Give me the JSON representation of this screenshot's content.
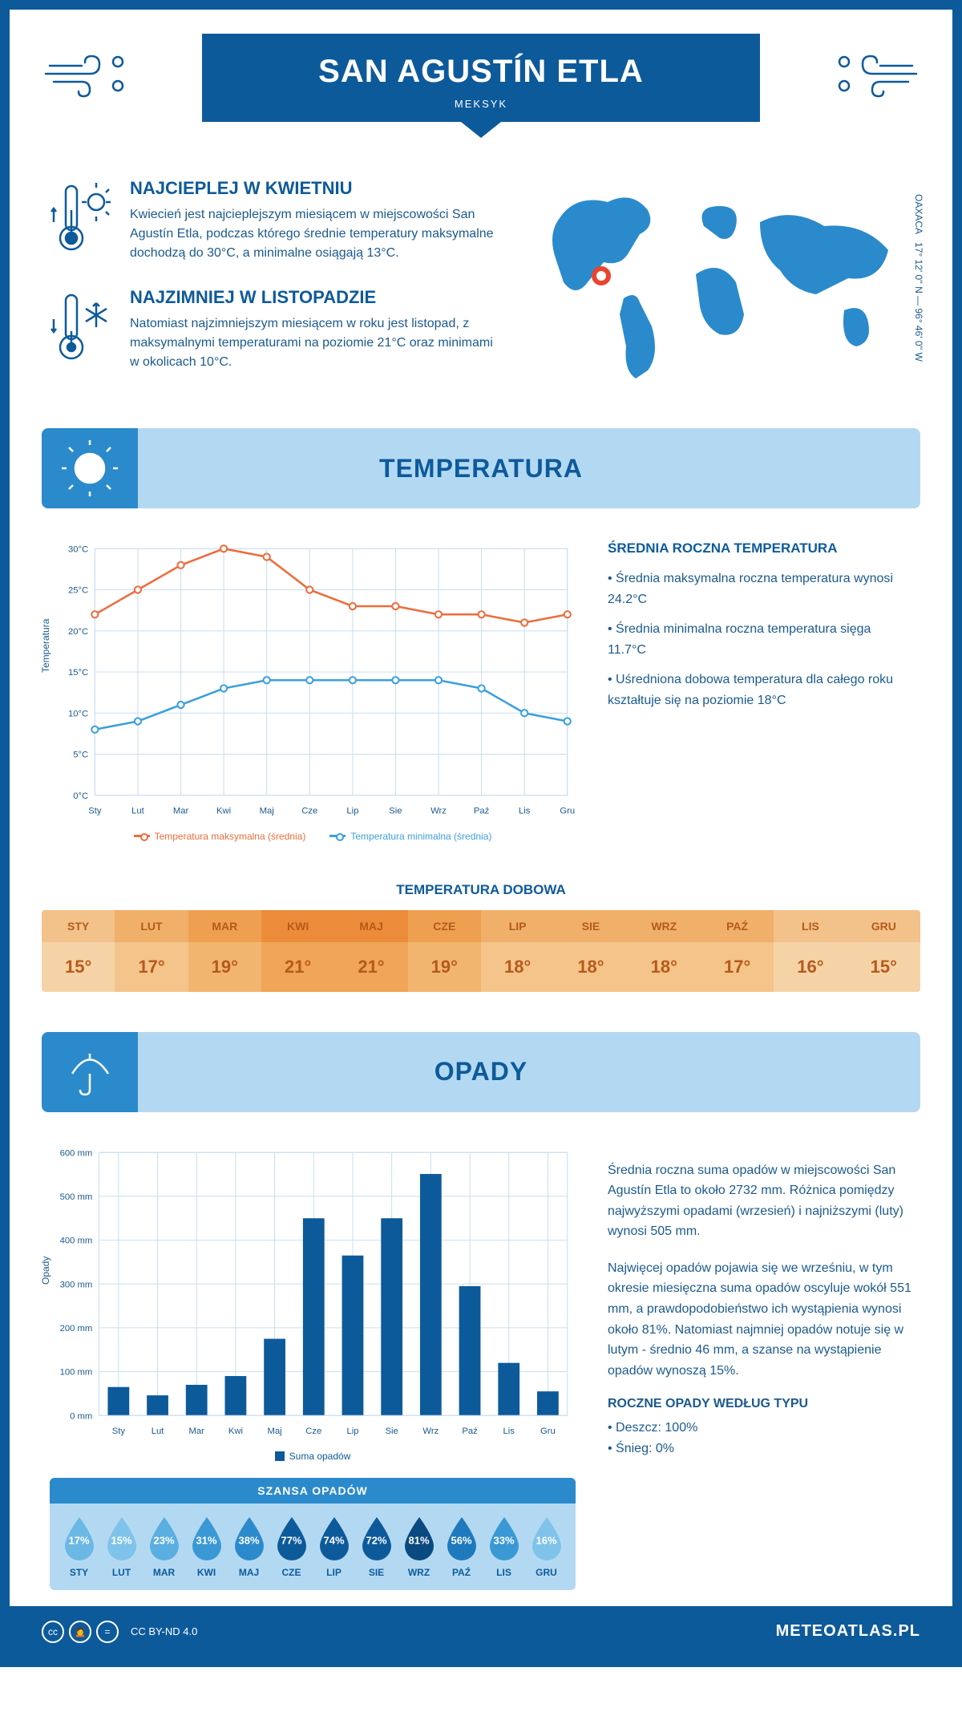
{
  "header": {
    "title": "SAN AGUSTÍN ETLA",
    "country": "MEKSYK"
  },
  "coords": {
    "lat": "17° 12' 0'' N",
    "lon": "96° 46' 0'' W",
    "region": "OAXACA"
  },
  "intro": {
    "warm": {
      "heading": "NAJCIEPLEJ W KWIETNIU",
      "text": "Kwiecień jest najcieplejszym miesiącem w miejscowości San Agustín Etla, podczas którego średnie temperatury maksymalne dochodzą do 30°C, a minimalne osiągają 13°C."
    },
    "cold": {
      "heading": "NAJZIMNIEJ W LISTOPADZIE",
      "text": "Natomiast najzimniejszym miesiącem w roku jest listopad, z maksymalnymi temperaturami na poziomie 21°C oraz minimami w okolicach 10°C."
    }
  },
  "sections": {
    "temperature": "TEMPERATURA",
    "precip": "OPADY"
  },
  "temp_chart": {
    "type": "line",
    "months": [
      "Sty",
      "Lut",
      "Mar",
      "Kwi",
      "Maj",
      "Cze",
      "Lip",
      "Sie",
      "Wrz",
      "Paź",
      "Lis",
      "Gru"
    ],
    "max": [
      22,
      25,
      28,
      30,
      29,
      25,
      23,
      23,
      22,
      22,
      21,
      22
    ],
    "min": [
      8,
      9,
      11,
      13,
      14,
      14,
      14,
      14,
      14,
      13,
      10,
      9
    ],
    "max_color": "#ec6d3e",
    "min_color": "#3ca0de",
    "grid_color": "#c8dff0",
    "ylim": [
      0,
      30
    ],
    "ytick_step": 5,
    "ylabel": "Temperatura",
    "legend_max": "Temperatura maksymalna (średnia)",
    "legend_min": "Temperatura minimalna (średnia)",
    "fontsize": 11
  },
  "temp_info": {
    "heading": "ŚREDNIA ROCZNA TEMPERATURA",
    "b1": "• Średnia maksymalna roczna temperatura wynosi 24.2°C",
    "b2": "• Średnia minimalna roczna temperatura sięga 11.7°C",
    "b3": "• Uśredniona dobowa temperatura dla całego roku kształtuje się na poziomie 18°C"
  },
  "daily": {
    "title": "TEMPERATURA DOBOWA",
    "months": [
      "STY",
      "LUT",
      "MAR",
      "KWI",
      "MAJ",
      "CZE",
      "LIP",
      "SIE",
      "WRZ",
      "PAŹ",
      "LIS",
      "GRU"
    ],
    "values": [
      "15°",
      "17°",
      "19°",
      "21°",
      "21°",
      "19°",
      "18°",
      "18°",
      "18°",
      "17°",
      "16°",
      "15°"
    ],
    "header_colors": [
      "#f2c28a",
      "#f0b06a",
      "#eea050",
      "#ec8c3a",
      "#ec8c3a",
      "#eea050",
      "#f0b06a",
      "#f0b06a",
      "#f0b06a",
      "#f0b06a",
      "#f2c28a",
      "#f2c28a"
    ],
    "value_colors": [
      "#f6d3a7",
      "#f4c48a",
      "#f2b570",
      "#f0a558",
      "#f0a558",
      "#f2b570",
      "#f4c48a",
      "#f4c48a",
      "#f4c48a",
      "#f4c48a",
      "#f6d3a7",
      "#f6d3a7"
    ],
    "text_color": "#b55a1a"
  },
  "precip_chart": {
    "type": "bar",
    "months": [
      "Sty",
      "Lut",
      "Mar",
      "Kwi",
      "Maj",
      "Cze",
      "Lip",
      "Sie",
      "Wrz",
      "Paź",
      "Lis",
      "Gru"
    ],
    "values": [
      65,
      46,
      70,
      90,
      175,
      450,
      365,
      450,
      551,
      295,
      120,
      55
    ],
    "bar_color": "#0d5a9b",
    "grid_color": "#c8dff0",
    "ylim": [
      0,
      600
    ],
    "ytick_step": 100,
    "ylabel": "Opady",
    "legend": "Suma opadów",
    "fontsize": 11
  },
  "precip_info": {
    "p1": "Średnia roczna suma opadów w miejscowości San Agustín Etla to około 2732 mm. Różnica pomiędzy najwyższymi opadami (wrzesień) i najniższymi (luty) wynosi 505 mm.",
    "p2": "Najwięcej opadów pojawia się we wrześniu, w tym okresie miesięczna suma opadów oscyluje wokół 551 mm, a prawdopodobieństwo ich wystąpienia wynosi około 81%. Natomiast najmniej opadów notuje się w lutym - średnio 46 mm, a szanse na wystąpienie opadów wynoszą 15%.",
    "type_heading": "ROCZNE OPADY WEDŁUG TYPU",
    "rain": "• Deszcz: 100%",
    "snow": "• Śnieg: 0%"
  },
  "chance": {
    "title": "SZANSA OPADÓW",
    "months": [
      "STY",
      "LUT",
      "MAR",
      "KWI",
      "MAJ",
      "CZE",
      "LIP",
      "SIE",
      "WRZ",
      "PAŹ",
      "LIS",
      "GRU"
    ],
    "values": [
      "17%",
      "15%",
      "23%",
      "31%",
      "38%",
      "77%",
      "74%",
      "72%",
      "81%",
      "56%",
      "33%",
      "16%"
    ],
    "drop_colors": [
      "#6bb8e5",
      "#7fc3ea",
      "#5aaee0",
      "#3a99d5",
      "#2b8acb",
      "#0d5a9b",
      "#0d5a9b",
      "#0d5a9b",
      "#0a4a80",
      "#1f79bd",
      "#3a99d5",
      "#7fc3ea"
    ]
  },
  "footer": {
    "license": "CC BY-ND 4.0",
    "brand": "METEOATLAS.PL"
  }
}
